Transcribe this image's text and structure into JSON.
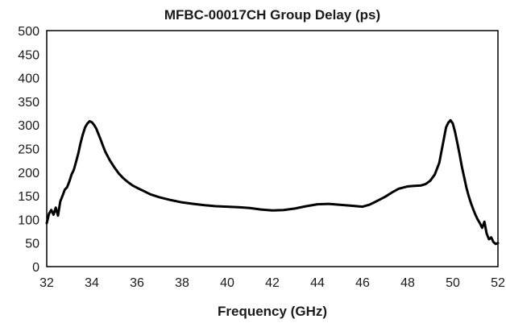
{
  "chart_data": {
    "type": "line",
    "title": "MFBC-00017CH Group Delay (ps)",
    "xlabel": "Frequency (GHz)",
    "ylabel": "",
    "xlim": [
      32,
      52
    ],
    "ylim": [
      0,
      500
    ],
    "xticks": [
      32,
      34,
      36,
      38,
      40,
      42,
      44,
      46,
      48,
      50,
      52
    ],
    "yticks": [
      0,
      50,
      100,
      150,
      200,
      250,
      300,
      350,
      400,
      450,
      500
    ],
    "xtick_labels": [
      "32",
      "34",
      "36",
      "38",
      "40",
      "42",
      "44",
      "46",
      "48",
      "50",
      "52"
    ],
    "ytick_labels": [
      "0",
      "50",
      "100",
      "150",
      "200",
      "250",
      "300",
      "350",
      "400",
      "450",
      "500"
    ],
    "grid": false,
    "line_color": "#000000",
    "series": [
      {
        "values": [
          {
            "x": 32.0,
            "y": 92
          },
          {
            "x": 32.1,
            "y": 112
          },
          {
            "x": 32.2,
            "y": 120
          },
          {
            "x": 32.3,
            "y": 110
          },
          {
            "x": 32.4,
            "y": 125
          },
          {
            "x": 32.5,
            "y": 108
          },
          {
            "x": 32.6,
            "y": 138
          },
          {
            "x": 32.7,
            "y": 150
          },
          {
            "x": 32.8,
            "y": 163
          },
          {
            "x": 32.9,
            "y": 168
          },
          {
            "x": 33.0,
            "y": 180
          },
          {
            "x": 33.1,
            "y": 195
          },
          {
            "x": 33.2,
            "y": 205
          },
          {
            "x": 33.3,
            "y": 222
          },
          {
            "x": 33.4,
            "y": 240
          },
          {
            "x": 33.5,
            "y": 262
          },
          {
            "x": 33.6,
            "y": 280
          },
          {
            "x": 33.7,
            "y": 295
          },
          {
            "x": 33.8,
            "y": 303
          },
          {
            "x": 33.9,
            "y": 308
          },
          {
            "x": 34.0,
            "y": 306
          },
          {
            "x": 34.1,
            "y": 300
          },
          {
            "x": 34.2,
            "y": 292
          },
          {
            "x": 34.3,
            "y": 280
          },
          {
            "x": 34.4,
            "y": 268
          },
          {
            "x": 34.5,
            "y": 255
          },
          {
            "x": 34.6,
            "y": 243
          },
          {
            "x": 34.8,
            "y": 225
          },
          {
            "x": 35.0,
            "y": 210
          },
          {
            "x": 35.2,
            "y": 197
          },
          {
            "x": 35.4,
            "y": 187
          },
          {
            "x": 35.6,
            "y": 179
          },
          {
            "x": 35.8,
            "y": 172
          },
          {
            "x": 36.0,
            "y": 167
          },
          {
            "x": 36.3,
            "y": 160
          },
          {
            "x": 36.6,
            "y": 153
          },
          {
            "x": 37.0,
            "y": 147
          },
          {
            "x": 37.5,
            "y": 141
          },
          {
            "x": 38.0,
            "y": 136
          },
          {
            "x": 38.5,
            "y": 133
          },
          {
            "x": 39.0,
            "y": 130
          },
          {
            "x": 39.5,
            "y": 128
          },
          {
            "x": 40.0,
            "y": 127
          },
          {
            "x": 40.5,
            "y": 126
          },
          {
            "x": 41.0,
            "y": 124
          },
          {
            "x": 41.5,
            "y": 121
          },
          {
            "x": 42.0,
            "y": 119
          },
          {
            "x": 42.5,
            "y": 120
          },
          {
            "x": 43.0,
            "y": 123
          },
          {
            "x": 43.5,
            "y": 128
          },
          {
            "x": 44.0,
            "y": 132
          },
          {
            "x": 44.5,
            "y": 133
          },
          {
            "x": 45.0,
            "y": 131
          },
          {
            "x": 45.5,
            "y": 129
          },
          {
            "x": 46.0,
            "y": 127
          },
          {
            "x": 46.3,
            "y": 131
          },
          {
            "x": 46.6,
            "y": 138
          },
          {
            "x": 47.0,
            "y": 148
          },
          {
            "x": 47.3,
            "y": 157
          },
          {
            "x": 47.6,
            "y": 165
          },
          {
            "x": 48.0,
            "y": 170
          },
          {
            "x": 48.3,
            "y": 171
          },
          {
            "x": 48.6,
            "y": 172
          },
          {
            "x": 48.8,
            "y": 175
          },
          {
            "x": 49.0,
            "y": 182
          },
          {
            "x": 49.2,
            "y": 195
          },
          {
            "x": 49.4,
            "y": 220
          },
          {
            "x": 49.5,
            "y": 245
          },
          {
            "x": 49.6,
            "y": 270
          },
          {
            "x": 49.7,
            "y": 295
          },
          {
            "x": 49.8,
            "y": 305
          },
          {
            "x": 49.9,
            "y": 310
          },
          {
            "x": 50.0,
            "y": 303
          },
          {
            "x": 50.1,
            "y": 285
          },
          {
            "x": 50.2,
            "y": 262
          },
          {
            "x": 50.3,
            "y": 238
          },
          {
            "x": 50.4,
            "y": 212
          },
          {
            "x": 50.5,
            "y": 190
          },
          {
            "x": 50.6,
            "y": 168
          },
          {
            "x": 50.7,
            "y": 150
          },
          {
            "x": 50.8,
            "y": 135
          },
          {
            "x": 50.9,
            "y": 122
          },
          {
            "x": 51.0,
            "y": 110
          },
          {
            "x": 51.1,
            "y": 100
          },
          {
            "x": 51.2,
            "y": 92
          },
          {
            "x": 51.3,
            "y": 82
          },
          {
            "x": 51.4,
            "y": 95
          },
          {
            "x": 51.5,
            "y": 70
          },
          {
            "x": 51.6,
            "y": 58
          },
          {
            "x": 51.7,
            "y": 62
          },
          {
            "x": 51.8,
            "y": 52
          },
          {
            "x": 51.9,
            "y": 48
          },
          {
            "x": 52.0,
            "y": 50
          }
        ]
      }
    ]
  }
}
